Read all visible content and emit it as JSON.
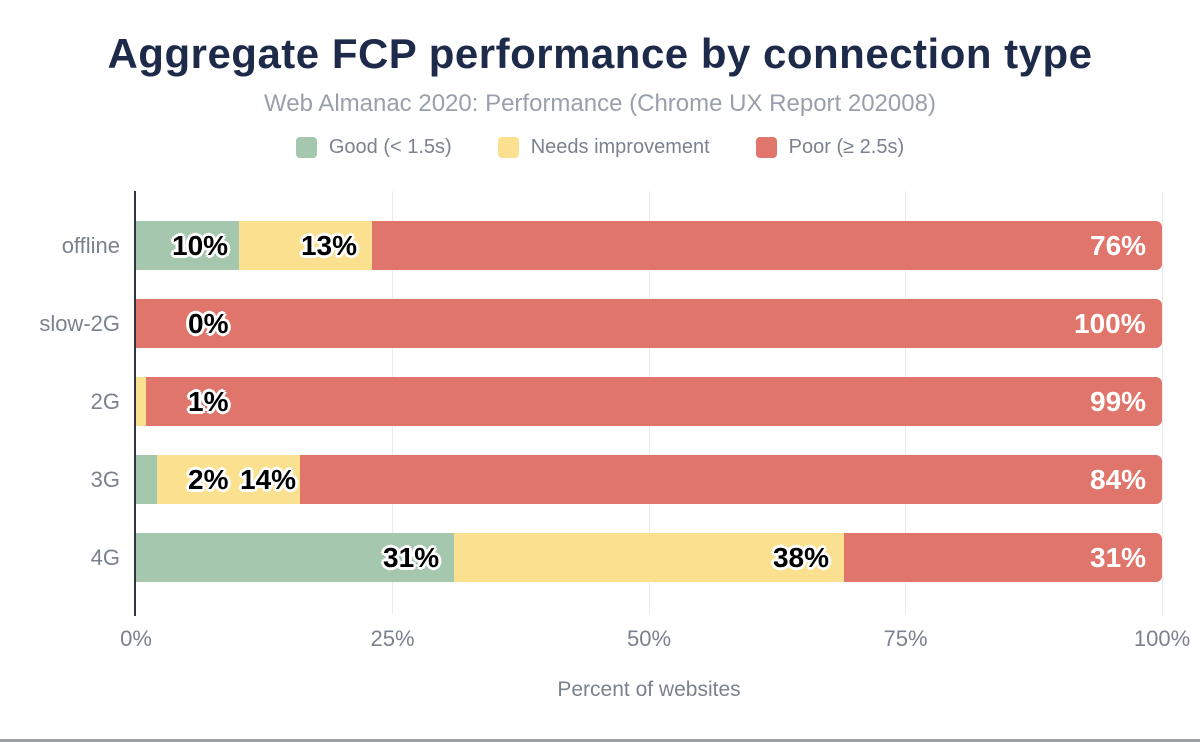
{
  "chart_data": {
    "type": "bar",
    "variant": "horizontal-stacked",
    "title": "Aggregate FCP performance by connection type",
    "subtitle": "Web Almanac 2020: Performance (Chrome UX Report 202008)",
    "xlabel": "Percent of websites",
    "ylabel": "",
    "xlim": [
      0,
      100
    ],
    "x_ticks": [
      "0%",
      "25%",
      "50%",
      "75%",
      "100%"
    ],
    "x_tick_values": [
      0,
      25,
      50,
      75,
      100
    ],
    "grid": "vertical-light",
    "legend_position": "top",
    "categories": [
      "offline",
      "slow-2G",
      "2G",
      "3G",
      "4G"
    ],
    "series": [
      {
        "name": "Good (< 1.5s)",
        "key": "good",
        "color": "#a4c7ae",
        "values": [
          10,
          0,
          0,
          2,
          31
        ]
      },
      {
        "name": "Needs improvement",
        "key": "needs",
        "color": "#fbe18f",
        "values": [
          13,
          0,
          1,
          14,
          38
        ]
      },
      {
        "name": "Poor (≥ 2.5s)",
        "key": "poor",
        "color": "#e0766b",
        "values": [
          76,
          100,
          99,
          84,
          31
        ]
      }
    ],
    "data_labels": [
      [
        "10%",
        "13%",
        "76%"
      ],
      [
        "0%",
        null,
        "100%"
      ],
      [
        null,
        "1%",
        "99%"
      ],
      [
        "2%",
        "14%",
        "84%"
      ],
      [
        "31%",
        "38%",
        "31%"
      ]
    ],
    "data_label_colors": {
      "good_and_needs": "#000000",
      "poor": "#ffffff"
    }
  },
  "style_colors": {
    "title": "#1d2a49",
    "subtitle": "#99a0ac",
    "axis_text": "#7b828e",
    "axis_line": "#30363f",
    "grid_line": "#ebebeb",
    "bottom_rule": "#9b9fa4",
    "background": "#ffffff"
  }
}
